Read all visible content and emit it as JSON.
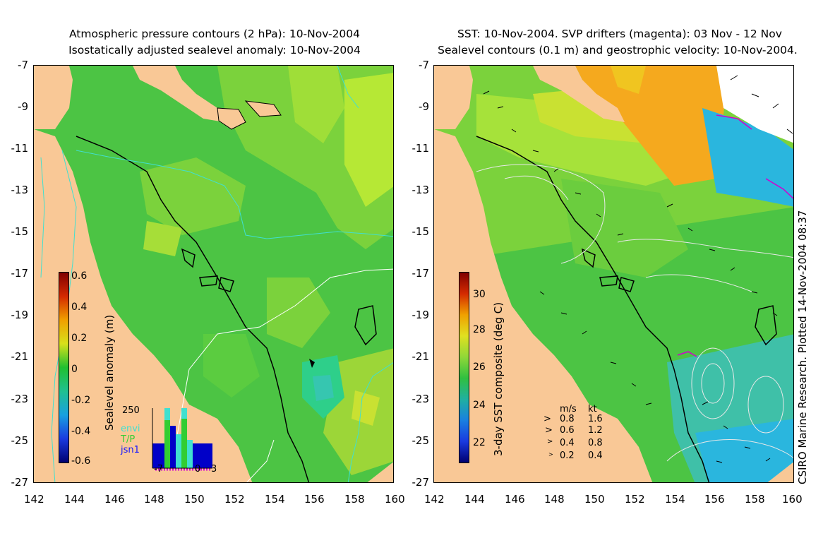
{
  "left_panel": {
    "title_line1": "Atmospheric pressure contours (2 hPa): 10-Nov-2004",
    "title_line2": "Isostatically adjusted sealevel anomaly: 10-Nov-2004",
    "colorbar_label": "Sealevel anomaly (m)",
    "colorbar_ticks": [
      "0.6",
      "0.4",
      "0.2",
      "0",
      "-0.2",
      "-0.4",
      "-0.6"
    ],
    "histogram": {
      "ymax_label": "250",
      "x_labels": [
        "-7",
        "0",
        "3"
      ],
      "legend": [
        "envi",
        "T/P",
        "jsn1"
      ],
      "legend_colors": [
        "#40e0d0",
        "#32cd32",
        "#1515ff"
      ]
    }
  },
  "right_panel": {
    "title_line1": "SST: 10-Nov-2004. SVP drifters (magenta): 03 Nov - 12 Nov",
    "title_line2": "Sealevel contours (0.1 m) and geostrophic velocity: 10-Nov-2004.",
    "colorbar_label": "3-day SST composite (deg C)",
    "colorbar_ticks": [
      "30",
      "28",
      "26",
      "24",
      "22"
    ],
    "velocity_legend": {
      "header_ms": "m/s",
      "header_kt": "kt",
      "rows": [
        {
          "ms": "0.8",
          "kt": "1.6"
        },
        {
          "ms": "0.6",
          "kt": "1.2"
        },
        {
          "ms": "0.4",
          "kt": "0.8"
        },
        {
          "ms": "0.2",
          "kt": "0.4"
        }
      ]
    }
  },
  "axes": {
    "x_ticks": [
      "142",
      "144",
      "146",
      "148",
      "150",
      "152",
      "154",
      "156",
      "158",
      "160"
    ],
    "y_ticks": [
      "-7",
      "-9",
      "-11",
      "-13",
      "-15",
      "-17",
      "-19",
      "-21",
      "-23",
      "-25",
      "-27"
    ]
  },
  "credit": "CSIRO Marine Research. Plotted 14-Nov-2004 08:37",
  "colors": {
    "land": "#f9c896",
    "sea_green": "#4cc444",
    "sea_light": "#a6e23a",
    "sst_orange": "#f5a91e",
    "sst_blue": "#2ab6de",
    "pressure_contour": "#40e0d0"
  }
}
